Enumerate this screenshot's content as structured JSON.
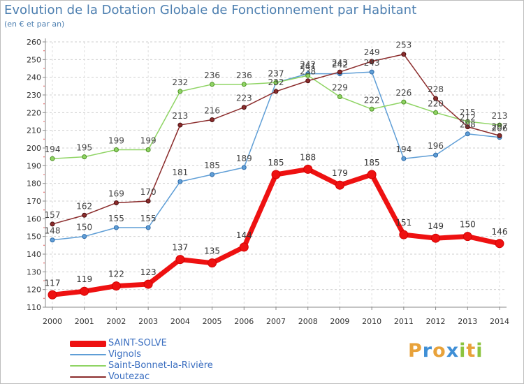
{
  "title": "Evolution de la Dotation Globale de Fonctionnement par Habitant",
  "subtitle": "(en € et par an)",
  "logo": {
    "text": "Proxiti",
    "letters": [
      {
        "ch": "P",
        "color": "#e8a23a"
      },
      {
        "ch": "r",
        "color": "#3f8fd6"
      },
      {
        "ch": "o",
        "color": "#e8a23a"
      },
      {
        "ch": "x",
        "color": "#3f8fd6"
      },
      {
        "ch": "i",
        "color": "#8cc43f"
      },
      {
        "ch": "t",
        "color": "#e8a23a"
      },
      {
        "ch": "i",
        "color": "#8cc43f"
      }
    ]
  },
  "chart_data": {
    "type": "line",
    "title": "Evolution de la Dotation Globale de Fonctionnement par Habitant",
    "subtitle": "(en € et par an)",
    "x": [
      "2000",
      "2001",
      "2002",
      "2003",
      "2004",
      "2005",
      "2006",
      "2007",
      "2008",
      "2009",
      "2010",
      "2011",
      "2012",
      "2013",
      "2014"
    ],
    "ylim": [
      110,
      260
    ],
    "yticks": [
      110,
      120,
      130,
      140,
      150,
      160,
      170,
      180,
      190,
      200,
      210,
      220,
      230,
      240,
      250,
      260
    ],
    "grid": "horizontal-dashed",
    "legend_position": "bottom-left",
    "series": [
      {
        "name": "SAINT-SOLVE",
        "color": "#ee1111",
        "values": [
          117,
          119,
          122,
          123,
          137,
          135,
          144,
          185,
          188,
          179,
          185,
          151,
          149,
          150,
          146
        ]
      },
      {
        "name": "Vignols",
        "color": "#5f9ed6",
        "values": [
          148,
          150,
          155,
          155,
          181,
          185,
          189,
          237,
          242,
          242,
          243,
          194,
          196,
          208,
          206
        ]
      },
      {
        "name": "Saint-Bonnet-la-Rivière",
        "color": "#8fd464",
        "values": [
          194,
          195,
          199,
          199,
          232,
          236,
          236,
          237,
          241,
          229,
          222,
          226,
          220,
          215,
          213
        ]
      },
      {
        "name": "Voutezac",
        "color": "#8b2c2c",
        "values": [
          157,
          162,
          169,
          170,
          213,
          216,
          223,
          232,
          238,
          243,
          249,
          253,
          228,
          212,
          207
        ]
      }
    ]
  }
}
